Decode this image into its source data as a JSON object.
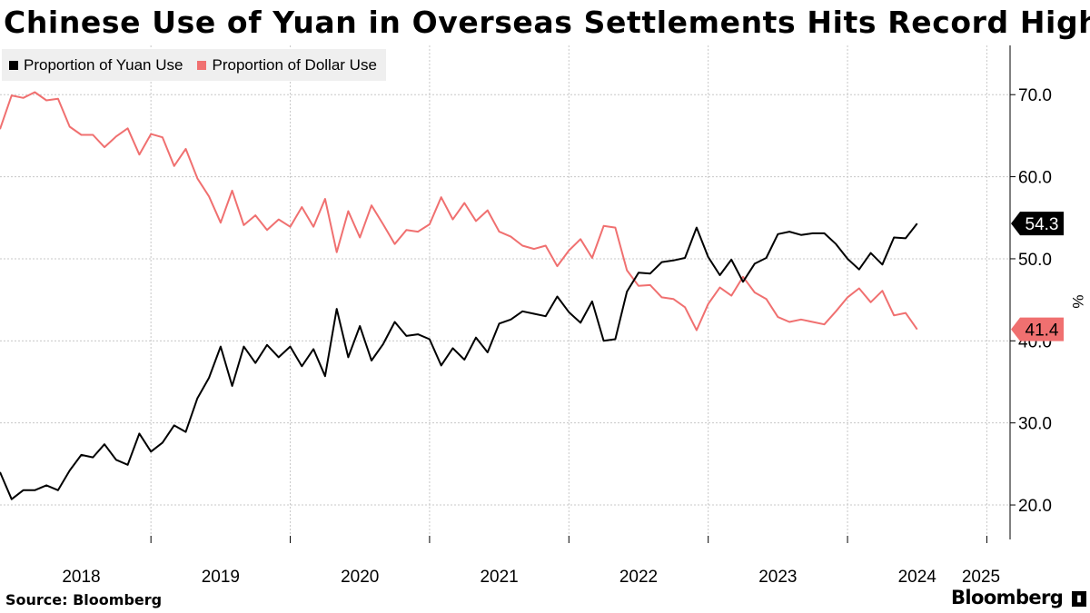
{
  "title": "Chinese Use of Yuan in Overseas Settlements Hits Record High",
  "source": "Source:  Bloomberg",
  "brand": "Bloomberg",
  "colors": {
    "yuan": "#000000",
    "dollar": "#f07070",
    "grid": "#c8c8c8"
  },
  "chart_data": {
    "type": "line",
    "ylabel": "%",
    "ylim": [
      15.8,
      76.0
    ],
    "yticks": [
      20.0,
      30.0,
      40.0,
      50.0,
      60.0,
      70.0
    ],
    "ytick_labels": [
      "20.0",
      "30.0",
      "40.0",
      "50.0",
      "60.0",
      "70.0"
    ],
    "xlim": [
      "2017-12",
      "2025-03"
    ],
    "year_labels": [
      "2018",
      "2019",
      "2020",
      "2021",
      "2022",
      "2023",
      "2024",
      "2025"
    ],
    "legend_position": "top-left",
    "grid": true,
    "series": [
      {
        "name": "Proportion of Yuan Use",
        "end_label": "54.3",
        "points": [
          [
            "2017-12",
            24.0
          ],
          [
            "2018-01",
            20.7
          ],
          [
            "2018-02",
            21.8
          ],
          [
            "2018-03",
            21.8
          ],
          [
            "2018-04",
            22.4
          ],
          [
            "2018-05",
            21.8
          ],
          [
            "2018-06",
            24.2
          ],
          [
            "2018-07",
            26.1
          ],
          [
            "2018-08",
            25.8
          ],
          [
            "2018-09",
            27.4
          ],
          [
            "2018-10",
            25.5
          ],
          [
            "2018-11",
            24.9
          ],
          [
            "2018-12",
            28.7
          ],
          [
            "2019-01",
            26.5
          ],
          [
            "2019-02",
            27.6
          ],
          [
            "2019-03",
            29.7
          ],
          [
            "2019-04",
            28.9
          ],
          [
            "2019-05",
            33.0
          ],
          [
            "2019-06",
            35.5
          ],
          [
            "2019-07",
            39.3
          ],
          [
            "2019-08",
            34.5
          ],
          [
            "2019-09",
            39.3
          ],
          [
            "2019-10",
            37.3
          ],
          [
            "2019-11",
            39.5
          ],
          [
            "2019-12",
            38.0
          ],
          [
            "2020-01",
            39.3
          ],
          [
            "2020-02",
            36.9
          ],
          [
            "2020-03",
            39.0
          ],
          [
            "2020-04",
            35.7
          ],
          [
            "2020-05",
            43.9
          ],
          [
            "2020-06",
            38.0
          ],
          [
            "2020-07",
            41.8
          ],
          [
            "2020-08",
            37.6
          ],
          [
            "2020-09",
            39.6
          ],
          [
            "2020-10",
            42.3
          ],
          [
            "2020-11",
            40.6
          ],
          [
            "2020-12",
            40.8
          ],
          [
            "2021-01",
            40.2
          ],
          [
            "2021-02",
            37.0
          ],
          [
            "2021-03",
            39.1
          ],
          [
            "2021-04",
            37.7
          ],
          [
            "2021-05",
            40.4
          ],
          [
            "2021-06",
            38.6
          ],
          [
            "2021-07",
            42.1
          ],
          [
            "2021-08",
            42.6
          ],
          [
            "2021-09",
            43.6
          ],
          [
            "2021-10",
            43.3
          ],
          [
            "2021-11",
            43.0
          ],
          [
            "2021-12",
            45.4
          ],
          [
            "2022-01",
            43.5
          ],
          [
            "2022-02",
            42.2
          ],
          [
            "2022-03",
            44.8
          ],
          [
            "2022-04",
            40.0
          ],
          [
            "2022-05",
            40.2
          ],
          [
            "2022-06",
            46.0
          ],
          [
            "2022-07",
            48.3
          ],
          [
            "2022-08",
            48.2
          ],
          [
            "2022-09",
            49.6
          ],
          [
            "2022-10",
            49.8
          ],
          [
            "2022-11",
            50.1
          ],
          [
            "2022-12",
            53.8
          ],
          [
            "2023-01",
            50.2
          ],
          [
            "2023-02",
            48.0
          ],
          [
            "2023-03",
            49.9
          ],
          [
            "2023-04",
            47.2
          ],
          [
            "2023-05",
            49.4
          ],
          [
            "2023-06",
            50.1
          ],
          [
            "2023-07",
            53.0
          ],
          [
            "2023-08",
            53.3
          ],
          [
            "2023-09",
            52.9
          ],
          [
            "2023-10",
            53.1
          ],
          [
            "2023-11",
            53.1
          ],
          [
            "2023-12",
            51.8
          ],
          [
            "2024-01",
            50.0
          ],
          [
            "2024-02",
            48.7
          ],
          [
            "2024-03",
            50.7
          ],
          [
            "2024-04",
            49.3
          ],
          [
            "2024-05",
            52.6
          ],
          [
            "2024-06",
            52.5
          ],
          [
            "2024-07",
            54.3
          ]
        ]
      },
      {
        "name": "Proportion of Dollar Use",
        "end_label": "41.4",
        "points": [
          [
            "2017-12",
            65.8
          ],
          [
            "2018-01",
            69.9
          ],
          [
            "2018-02",
            69.6
          ],
          [
            "2018-03",
            70.3
          ],
          [
            "2018-04",
            69.3
          ],
          [
            "2018-05",
            69.5
          ],
          [
            "2018-06",
            66.1
          ],
          [
            "2018-07",
            65.1
          ],
          [
            "2018-08",
            65.1
          ],
          [
            "2018-09",
            63.6
          ],
          [
            "2018-10",
            64.9
          ],
          [
            "2018-11",
            65.9
          ],
          [
            "2018-12",
            62.7
          ],
          [
            "2019-01",
            65.2
          ],
          [
            "2019-02",
            64.8
          ],
          [
            "2019-03",
            61.3
          ],
          [
            "2019-04",
            63.4
          ],
          [
            "2019-05",
            59.8
          ],
          [
            "2019-06",
            57.6
          ],
          [
            "2019-07",
            54.4
          ],
          [
            "2019-08",
            58.3
          ],
          [
            "2019-09",
            54.1
          ],
          [
            "2019-10",
            55.3
          ],
          [
            "2019-11",
            53.5
          ],
          [
            "2019-12",
            54.8
          ],
          [
            "2020-01",
            53.9
          ],
          [
            "2020-02",
            56.3
          ],
          [
            "2020-03",
            53.9
          ],
          [
            "2020-04",
            57.3
          ],
          [
            "2020-05",
            50.8
          ],
          [
            "2020-06",
            55.8
          ],
          [
            "2020-07",
            52.6
          ],
          [
            "2020-08",
            56.5
          ],
          [
            "2020-09",
            54.2
          ],
          [
            "2020-10",
            51.8
          ],
          [
            "2020-11",
            53.5
          ],
          [
            "2020-12",
            53.3
          ],
          [
            "2021-01",
            54.2
          ],
          [
            "2021-02",
            57.5
          ],
          [
            "2021-03",
            54.8
          ],
          [
            "2021-04",
            56.8
          ],
          [
            "2021-05",
            54.6
          ],
          [
            "2021-06",
            55.9
          ],
          [
            "2021-07",
            53.3
          ],
          [
            "2021-08",
            52.7
          ],
          [
            "2021-09",
            51.6
          ],
          [
            "2021-10",
            51.2
          ],
          [
            "2021-11",
            51.6
          ],
          [
            "2021-12",
            49.1
          ],
          [
            "2022-01",
            51.0
          ],
          [
            "2022-02",
            52.4
          ],
          [
            "2022-03",
            50.1
          ],
          [
            "2022-04",
            54.0
          ],
          [
            "2022-05",
            53.8
          ],
          [
            "2022-06",
            48.6
          ],
          [
            "2022-07",
            46.7
          ],
          [
            "2022-08",
            46.8
          ],
          [
            "2022-09",
            45.3
          ],
          [
            "2022-10",
            45.1
          ],
          [
            "2022-11",
            44.1
          ],
          [
            "2022-12",
            41.3
          ],
          [
            "2023-01",
            44.5
          ],
          [
            "2023-02",
            46.5
          ],
          [
            "2023-03",
            45.5
          ],
          [
            "2023-04",
            47.8
          ],
          [
            "2023-05",
            45.9
          ],
          [
            "2023-06",
            45.1
          ],
          [
            "2023-07",
            42.9
          ],
          [
            "2023-08",
            42.3
          ],
          [
            "2023-09",
            42.6
          ],
          [
            "2023-10",
            42.3
          ],
          [
            "2023-11",
            42.0
          ],
          [
            "2023-12",
            43.6
          ],
          [
            "2024-01",
            45.3
          ],
          [
            "2024-02",
            46.4
          ],
          [
            "2024-03",
            44.7
          ],
          [
            "2024-04",
            46.1
          ],
          [
            "2024-05",
            43.1
          ],
          [
            "2024-06",
            43.4
          ],
          [
            "2024-07",
            41.4
          ]
        ]
      }
    ]
  }
}
